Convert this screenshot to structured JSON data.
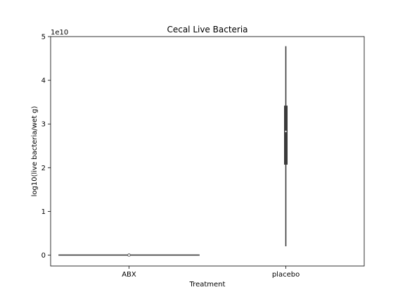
{
  "chart_data": {
    "type": "violin",
    "title": "Cecal Live Bacteria",
    "xlabel": "Treatment",
    "ylabel": "log10(live bacteria/wet g)",
    "y_offset_label": "1e10",
    "categories": [
      "ABX",
      "placebo"
    ],
    "ylim": [
      -0.25,
      5.0
    ],
    "y_ticks": [
      0,
      1,
      2,
      3,
      4,
      5
    ],
    "y_tick_labels": [
      "0",
      "1",
      "2",
      "3",
      "4",
      "5"
    ],
    "grid": false,
    "violins": [
      {
        "category": "ABX",
        "min": 0.0,
        "max": 0.0,
        "q1": 0.0,
        "median": 0.0,
        "q3": 0.0,
        "max_half_width_fraction": 0.45
      },
      {
        "category": "placebo",
        "min": 0.2,
        "max": 4.78,
        "q1": 2.07,
        "median": 2.83,
        "q3": 3.42,
        "max_half_width_fraction": 0.012
      }
    ],
    "colors": {
      "body": "#3b3b3b",
      "box": "#3b3b3b",
      "median": "#ffffff",
      "axes": "#000000"
    }
  }
}
